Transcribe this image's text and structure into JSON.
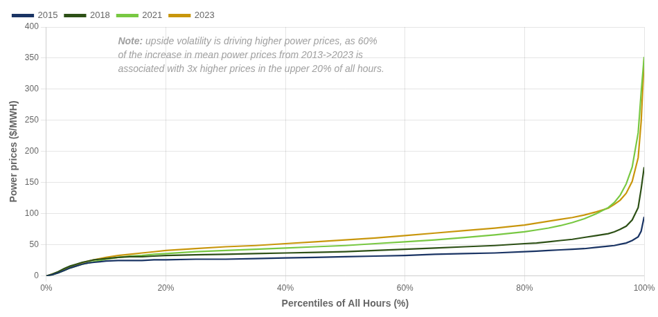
{
  "chart_data": {
    "type": "line",
    "xlabel": "Percentiles of All Hours (%)",
    "ylabel": "Power prices ($/MWH)",
    "annotations": [
      "Note: upside volatility is driving higher power prices, as 60%\nof the increase in mean power prices from 2013->2023 is\nassociated with 3x higher prices in the upper 20% of all hours."
    ],
    "x": [
      0,
      0.01,
      0.02,
      0.03,
      0.04,
      0.05,
      0.06,
      0.07,
      0.08,
      0.09,
      0.1,
      0.12,
      0.14,
      0.16,
      0.18,
      0.2,
      0.25,
      0.3,
      0.35,
      0.4,
      0.45,
      0.5,
      0.55,
      0.6,
      0.65,
      0.7,
      0.75,
      0.8,
      0.82,
      0.84,
      0.86,
      0.88,
      0.9,
      0.92,
      0.94,
      0.95,
      0.96,
      0.97,
      0.98,
      0.99,
      0.995,
      1.0
    ],
    "series": [
      {
        "name": "2015",
        "color": "#1a3464",
        "values": [
          0,
          2,
          5,
          9,
          13,
          16,
          19,
          21,
          22,
          23,
          24,
          25,
          25,
          25,
          26,
          26,
          27,
          27,
          28,
          29,
          30,
          31,
          32,
          33,
          35,
          36,
          37,
          39,
          40,
          41,
          42,
          43,
          44,
          46,
          48,
          49,
          51,
          53,
          57,
          63,
          72,
          95
        ]
      },
      {
        "name": "2018",
        "color": "#2d5016",
        "values": [
          0,
          3,
          7,
          12,
          16,
          19,
          22,
          24,
          26,
          27,
          28,
          30,
          31,
          31,
          32,
          33,
          34,
          35,
          36,
          37,
          38,
          39,
          41,
          43,
          45,
          47,
          49,
          52,
          53,
          55,
          57,
          59,
          62,
          65,
          68,
          71,
          75,
          80,
          90,
          110,
          140,
          175
        ]
      },
      {
        "name": "2021",
        "color": "#78c842",
        "values": [
          0,
          2,
          5,
          9,
          13,
          16,
          19,
          21,
          23,
          25,
          27,
          30,
          32,
          33,
          35,
          36,
          39,
          41,
          43,
          45,
          47,
          49,
          52,
          55,
          58,
          62,
          66,
          71,
          74,
          77,
          81,
          86,
          92,
          100,
          110,
          118,
          130,
          148,
          175,
          230,
          295,
          352
        ]
      },
      {
        "name": "2023",
        "color": "#c8960c",
        "values": [
          0,
          3,
          6,
          10,
          14,
          18,
          21,
          24,
          26,
          28,
          30,
          33,
          35,
          37,
          39,
          41,
          44,
          47,
          49,
          52,
          55,
          58,
          61,
          65,
          69,
          73,
          77,
          82,
          85,
          88,
          91,
          94,
          98,
          103,
          109,
          115,
          122,
          133,
          152,
          190,
          248,
          348
        ]
      }
    ],
    "xlim": [
      0,
      1.0
    ],
    "xticks": [
      {
        "value": 0,
        "label": "0%"
      },
      {
        "value": 0.2,
        "label": "20%"
      },
      {
        "value": 0.4,
        "label": "40%"
      },
      {
        "value": 0.6,
        "label": "60%"
      },
      {
        "value": 0.8,
        "label": "80%"
      },
      {
        "value": 1.0,
        "label": "100%"
      }
    ],
    "ylim": [
      0,
      400
    ],
    "yticks": [
      0,
      50,
      100,
      150,
      200,
      250,
      300,
      350,
      400
    ],
    "grid": true,
    "legend": "upper left"
  }
}
